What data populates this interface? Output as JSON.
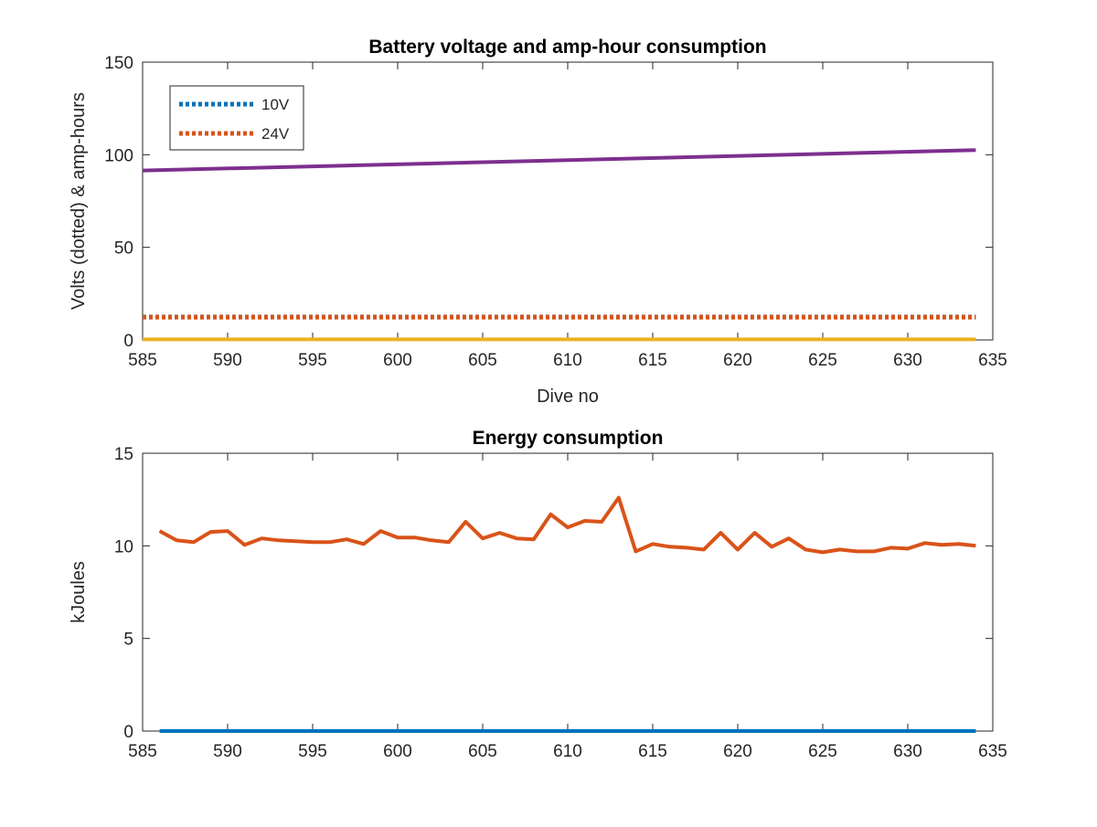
{
  "chart_data": [
    {
      "type": "line",
      "title": "Battery voltage and amp-hour consumption",
      "xlabel": "Dive no",
      "ylabel": "Volts (dotted) & amp-hours",
      "xlim": [
        585,
        635
      ],
      "ylim": [
        0,
        150
      ],
      "xticks": [
        "585",
        "590",
        "595",
        "600",
        "605",
        "610",
        "615",
        "620",
        "625",
        "630",
        "635"
      ],
      "yticks": [
        "0",
        "50",
        "100",
        "150"
      ],
      "legend": {
        "placement": "top-left",
        "entries": [
          "10V",
          "24V"
        ]
      },
      "series": [
        {
          "name": "10V",
          "color": "#0072BD",
          "style": "dotted",
          "x": [
            585,
            634
          ],
          "y": [
            12.4,
            12.4
          ]
        },
        {
          "name": "24V",
          "color": "#D95319",
          "style": "dotted",
          "x": [
            585,
            634
          ],
          "y": [
            12.3,
            12.3
          ]
        },
        {
          "color": "#7E2F8E",
          "style": "solid",
          "x": [
            585,
            634
          ],
          "y": [
            91.5,
            102.5
          ]
        },
        {
          "color": "#EDB120",
          "style": "solid",
          "x": [
            585,
            634
          ],
          "y": [
            0.3,
            0.3
          ]
        }
      ]
    },
    {
      "type": "line",
      "title": "Energy consumption",
      "xlabel": "",
      "ylabel": "kJoules",
      "xlim": [
        585,
        635
      ],
      "ylim": [
        0,
        15
      ],
      "xticks": [
        "585",
        "590",
        "595",
        "600",
        "605",
        "610",
        "615",
        "620",
        "625",
        "630",
        "635"
      ],
      "yticks": [
        "0",
        "5",
        "10",
        "15"
      ],
      "series": [
        {
          "color": "#D95319",
          "style": "solid",
          "x": [
            586,
            587,
            588,
            589,
            590,
            591,
            592,
            593,
            594,
            595,
            596,
            597,
            598,
            599,
            600,
            601,
            602,
            603,
            604,
            605,
            606,
            607,
            608,
            609,
            610,
            611,
            612,
            613,
            614,
            615,
            616,
            617,
            618,
            619,
            620,
            621,
            622,
            623,
            624,
            625,
            626,
            627,
            628,
            629,
            630,
            631,
            632,
            633,
            634
          ],
          "y": [
            10.8,
            10.3,
            10.2,
            10.75,
            10.8,
            10.05,
            10.4,
            10.3,
            10.25,
            10.2,
            10.2,
            10.35,
            10.1,
            10.8,
            10.45,
            10.45,
            10.3,
            10.2,
            11.3,
            10.4,
            10.7,
            10.4,
            10.35,
            11.7,
            11.0,
            11.35,
            11.3,
            12.6,
            9.7,
            10.1,
            9.95,
            9.9,
            9.8,
            10.7,
            9.8,
            10.7,
            9.95,
            10.4,
            9.8,
            9.65,
            9.8,
            9.7,
            9.7,
            9.9,
            9.85,
            10.15,
            10.05,
            10.1,
            10.0
          ]
        },
        {
          "color": "#0072BD",
          "style": "solid",
          "x": [
            586,
            634
          ],
          "y": [
            0,
            0
          ]
        }
      ]
    }
  ]
}
